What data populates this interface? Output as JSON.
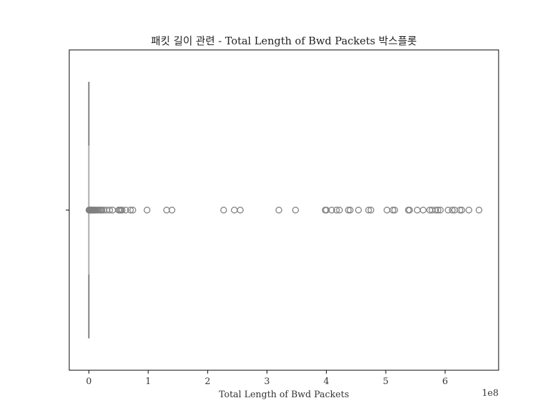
{
  "chart_data": {
    "type": "box",
    "orientation": "horizontal",
    "title": "패킷 길이 관련 - Total Length of Bwd Packets 박스플롯",
    "xlabel": "Total Length of Bwd Packets",
    "ylabel": "",
    "x_offset_label": "1e8",
    "xlim": [
      -0.33,
      6.9
    ],
    "x_ticks": [
      0,
      1,
      2,
      3,
      4,
      5,
      6
    ],
    "x_tick_labels": [
      "0",
      "1",
      "2",
      "3",
      "4",
      "5",
      "6"
    ],
    "grid": false,
    "legend": "none",
    "colors": {
      "box": "#808080",
      "flier_edge": "#808080",
      "frame": "#000000"
    },
    "box": {
      "q1": 0.0,
      "median": 0.0,
      "q3": 0.0,
      "whisker_low": 0.0,
      "whisker_high": 0.0
    },
    "outliers": [
      0.002,
      0.005,
      0.01,
      0.015,
      0.02,
      0.03,
      0.04,
      0.05,
      0.06,
      0.07,
      0.08,
      0.09,
      0.1,
      0.12,
      0.14,
      0.16,
      0.18,
      0.2,
      0.22,
      0.25,
      0.3,
      0.35,
      0.4,
      0.5,
      0.52,
      0.54,
      0.56,
      0.62,
      0.7,
      0.74,
      0.98,
      1.31,
      1.4,
      2.27,
      2.45,
      2.55,
      3.2,
      3.48,
      3.98,
      4.0,
      4.09,
      4.17,
      4.22,
      4.37,
      4.4,
      4.54,
      4.71,
      4.75,
      5.02,
      5.12,
      5.15,
      5.38,
      5.4,
      5.53,
      5.63,
      5.74,
      5.78,
      5.84,
      5.88,
      5.92,
      6.05,
      6.12,
      6.16,
      6.25,
      6.28,
      6.4,
      6.57
    ]
  }
}
